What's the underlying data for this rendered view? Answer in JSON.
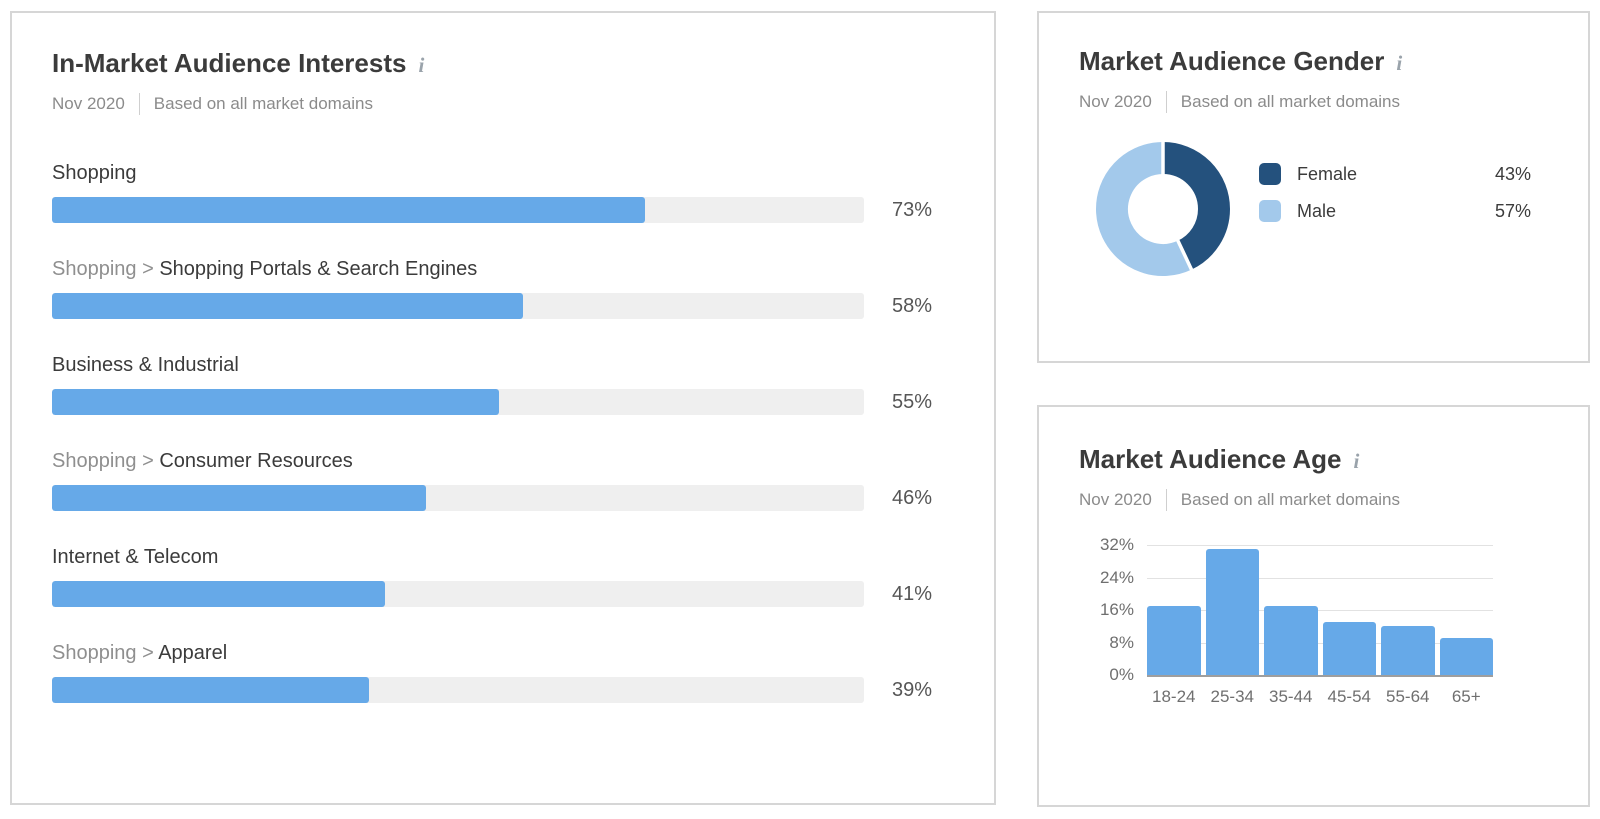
{
  "colors": {
    "accent_blue": "#66a9e8",
    "bar_track": "#efefef",
    "donut_female": "#24517d",
    "donut_male": "#a3c9eb",
    "title_text": "#3b3b3b",
    "muted_text": "#8b8b8b",
    "value_text": "#565656",
    "axis_text": "#6f6f6f",
    "gridline": "#e2e2e2",
    "axis_baseline": "#9e9e9e",
    "panel_border": "#d6d6d6",
    "info_icon": "#9aa3ab"
  },
  "icons": {
    "info": "i"
  },
  "panels": {
    "interests": {
      "title": "In-Market Audience Interests",
      "period": "Nov 2020",
      "basis": "Based on all market domains"
    },
    "gender": {
      "title": "Market Audience Gender",
      "period": "Nov 2020",
      "basis": "Based on all market domains"
    },
    "age": {
      "title": "Market Audience Age",
      "period": "Nov 2020",
      "basis": "Based on all market domains"
    }
  },
  "chart_data": [
    {
      "id": "interests",
      "type": "bar",
      "orientation": "horizontal",
      "title": "In-Market Audience Interests",
      "subtitle": "Nov 2020 | Based on all market domains",
      "categories": [
        {
          "prefix": "",
          "name": "Shopping"
        },
        {
          "prefix": "Shopping",
          "name": "Shopping Portals & Search Engines"
        },
        {
          "prefix": "",
          "name": "Business & Industrial"
        },
        {
          "prefix": "Shopping",
          "name": "Consumer Resources"
        },
        {
          "prefix": "",
          "name": "Internet & Telecom"
        },
        {
          "prefix": "Shopping",
          "name": "Apparel"
        }
      ],
      "values": [
        73,
        58,
        55,
        46,
        41,
        39
      ],
      "value_labels": [
        "73%",
        "58%",
        "55%",
        "46%",
        "41%",
        "39%"
      ],
      "xlim": [
        0,
        100
      ],
      "bar_color": "#66a9e8",
      "track_color": "#efefef",
      "grid": false
    },
    {
      "id": "gender",
      "type": "pie",
      "donut": true,
      "title": "Market Audience Gender",
      "subtitle": "Nov 2020 | Based on all market domains",
      "slices": [
        {
          "label": "Female",
          "value": 43,
          "value_label": "43%",
          "color": "#24517d"
        },
        {
          "label": "Male",
          "value": 57,
          "value_label": "57%",
          "color": "#a3c9eb"
        }
      ],
      "start_angle": "top, clockwise",
      "legend_position": "right"
    },
    {
      "id": "age",
      "type": "bar",
      "orientation": "vertical",
      "title": "Market Audience Age",
      "subtitle": "Nov 2020 | Based on all market domains",
      "categories": [
        "18-24",
        "25-34",
        "35-44",
        "45-54",
        "55-64",
        "65+"
      ],
      "values": [
        17,
        31,
        17,
        13,
        12,
        9
      ],
      "y_ticks": [
        0,
        8,
        16,
        24,
        32
      ],
      "y_tick_labels": [
        "0%",
        "8%",
        "16%",
        "24%",
        "32%"
      ],
      "ylim": [
        0,
        32
      ],
      "grid": true,
      "bar_color": "#66a9e8"
    }
  ]
}
